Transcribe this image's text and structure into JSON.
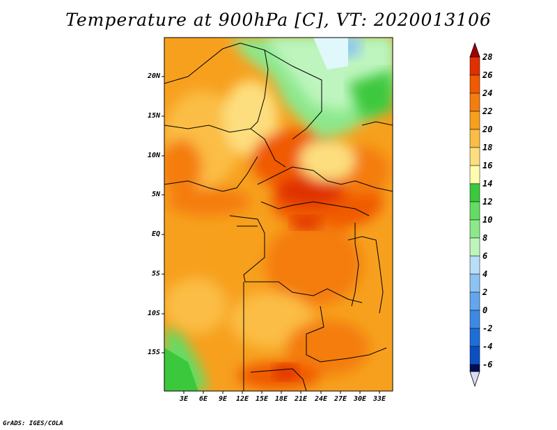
{
  "title": "Temperature at 900hPa [C], VT: 2020013106",
  "credit": "GrADS: IGES/COLA",
  "map": {
    "lat_labels": [
      "20N",
      "15N",
      "10N",
      "5N",
      "EQ",
      "5S",
      "10S",
      "15S"
    ],
    "lon_labels": [
      "3E",
      "6E",
      "9E",
      "12E",
      "15E",
      "18E",
      "21E",
      "24E",
      "27E",
      "30E",
      "33E"
    ],
    "lat_range": [
      -19.5,
      24.5
    ],
    "lon_range": [
      0,
      34.5
    ],
    "variable": "Temperature",
    "units": "C",
    "level": "900hPa"
  },
  "colorbar": {
    "labels": [
      "28",
      "26",
      "24",
      "22",
      "20",
      "18",
      "16",
      "14",
      "12",
      "10",
      "8",
      "6",
      "4",
      "2",
      "0",
      "-2",
      "-4",
      "-6"
    ],
    "colors": [
      "#a50000",
      "#e03000",
      "#f05a00",
      "#f47d10",
      "#f7a01e",
      "#fbbd45",
      "#fdde7e",
      "#fffcb0",
      "#3cc83c",
      "#64dc64",
      "#8ce88c",
      "#bef5be",
      "#b8def8",
      "#8ec2f4",
      "#64a6ee",
      "#3c8ae6",
      "#1e6ed8",
      "#0a50c2",
      "#003aa6",
      "#00227a",
      "#000e55",
      "#dcdcf5"
    ]
  }
}
